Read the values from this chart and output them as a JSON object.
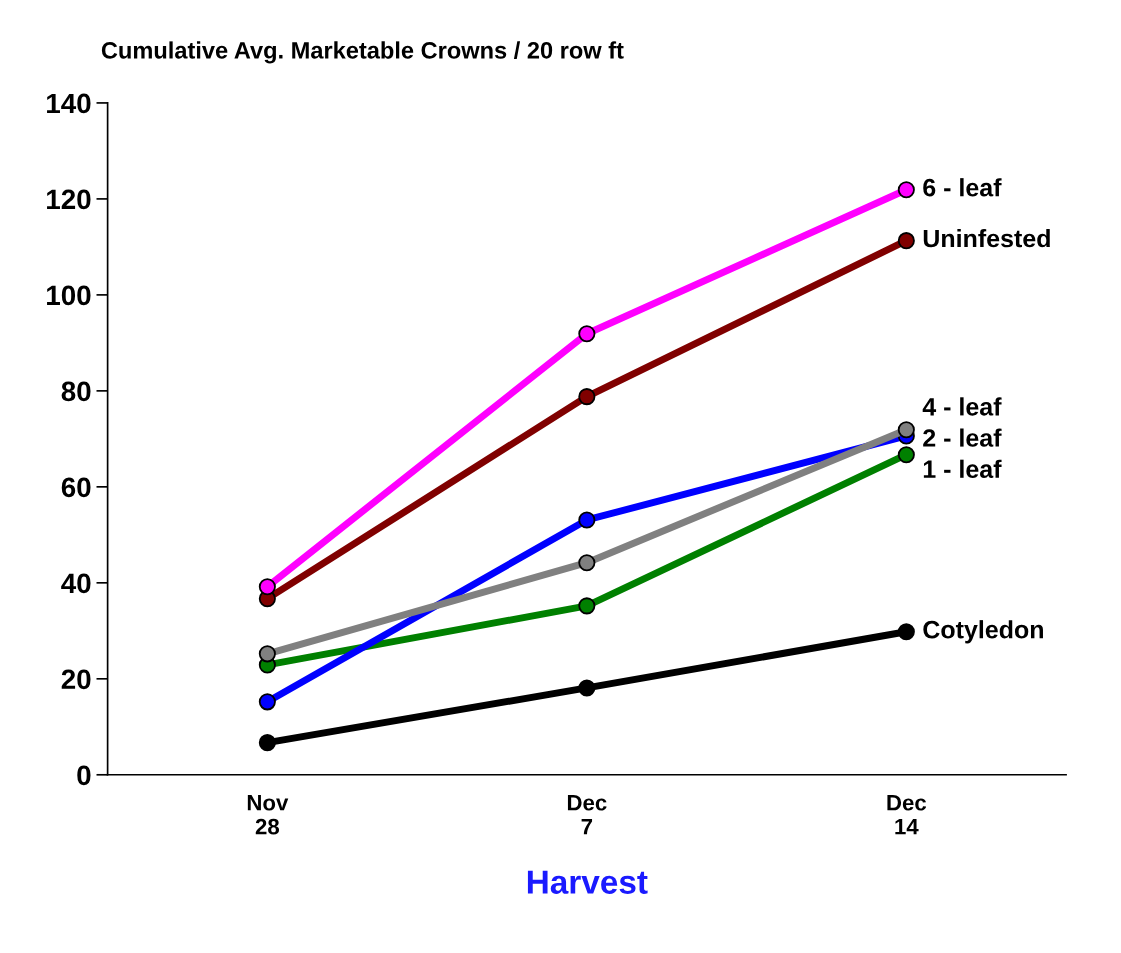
{
  "chart_data": {
    "type": "line",
    "title": "Cumulative Avg. Marketable Crowns / 20 row ft",
    "xlabel": "Harvest",
    "categories": [
      "Nov\n28",
      "Dec\n7",
      "Dec\n14"
    ],
    "series": [
      {
        "name": "6 - leaf",
        "color": "#ff00ff",
        "values": [
          39.2,
          91.9,
          121.9
        ]
      },
      {
        "name": "Uninfested",
        "color": "#800000",
        "values": [
          36.7,
          78.8,
          111.3
        ]
      },
      {
        "name": "4 - leaf",
        "color": "#808080",
        "values": [
          25.2,
          44.2,
          71.9
        ]
      },
      {
        "name": "2 - leaf",
        "color": "#0000ff",
        "values": [
          15.2,
          53.1,
          70.6
        ]
      },
      {
        "name": "1 - leaf",
        "color": "#008000",
        "values": [
          22.9,
          35.2,
          66.7
        ]
      },
      {
        "name": "Cotyledon",
        "color": "#000000",
        "values": [
          6.7,
          18.1,
          29.8
        ]
      }
    ],
    "ylim": [
      0,
      140
    ],
    "yticks": [
      0,
      20,
      40,
      60,
      80,
      100,
      120,
      140
    ],
    "grid": false,
    "legend": false,
    "marker": "circle",
    "line_style": "solid"
  }
}
